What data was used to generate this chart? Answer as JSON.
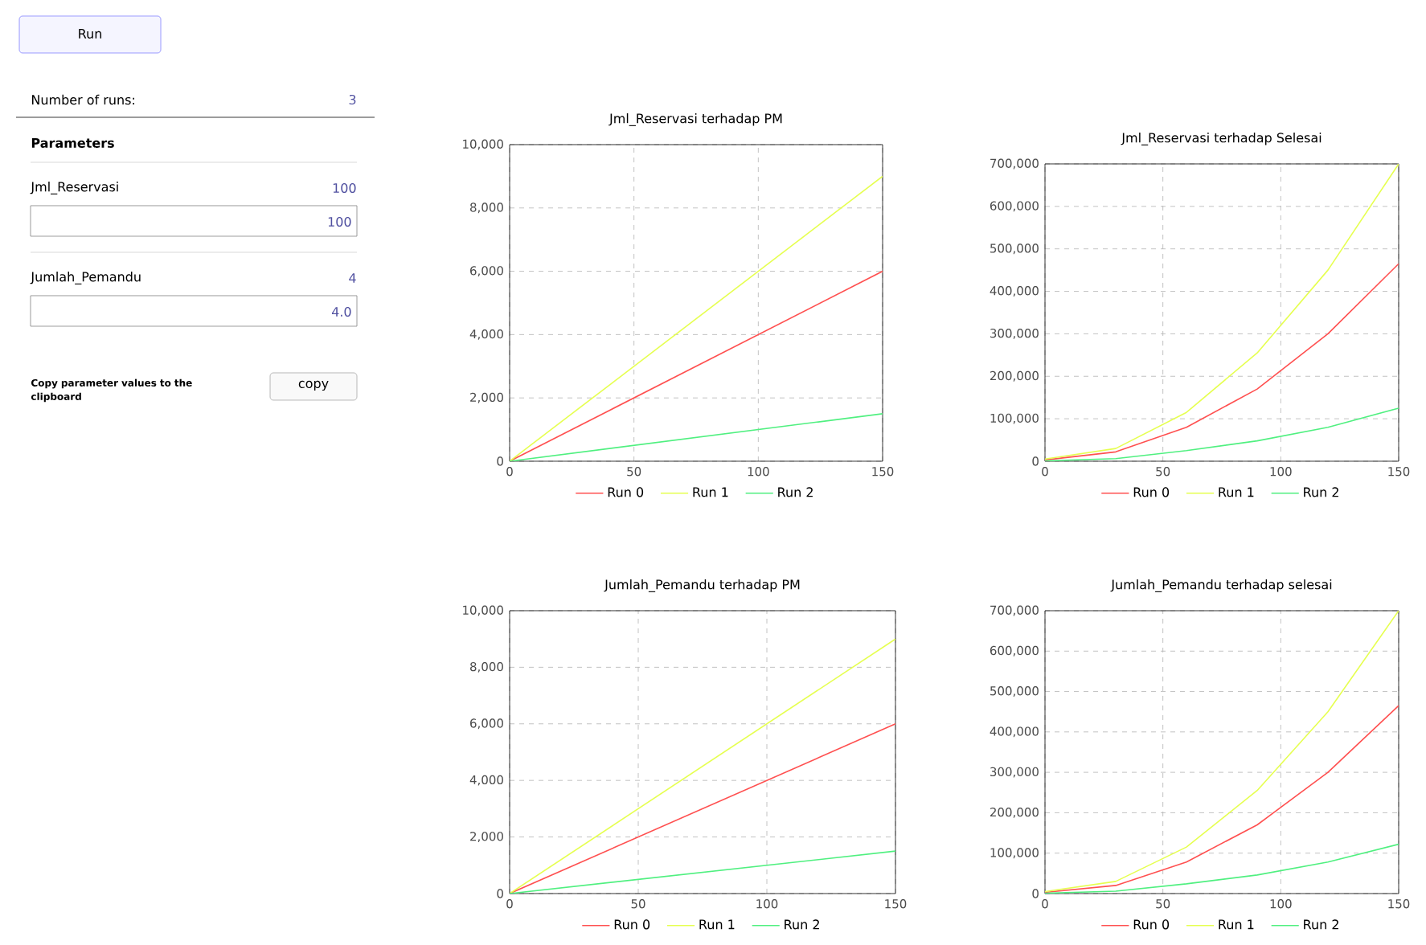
{
  "chart_data": [
    {
      "type": "other",
      "annotations": [
        "Run",
        "Number of runs:",
        "3",
        "Parameters",
        "Jml_Reservasi",
        "100",
        "100",
        "Jumlah_Pemandu",
        "4",
        "4.0",
        "Copy parameter values to the clipboard",
        "copy"
      ]
    },
    {
      "type": "line",
      "title": "Jml_Reservasi terhadap PM",
      "x": [
        0,
        150
      ],
      "xlim": [
        0,
        150
      ],
      "ylim": [
        0,
        10000
      ],
      "xticks": [
        0,
        50,
        100,
        150
      ],
      "yticks": [
        0,
        {
          "value": 2000,
          "label": "2,000"
        },
        {
          "value": 4000,
          "label": "4,000"
        },
        {
          "value": 6000,
          "label": "6,000"
        },
        {
          "value": 8000,
          "label": "8,000"
        },
        {
          "value": 10000,
          "label": "10,000"
        }
      ],
      "grid": true,
      "legend": "bottom",
      "series": [
        {
          "name": "Run 0",
          "color": "#ff5050",
          "values": [
            0,
            6000
          ]
        },
        {
          "name": "Run 1",
          "color": "#e6ff50",
          "values": [
            0,
            9000
          ]
        },
        {
          "name": "Run 2",
          "color": "#50f080",
          "values": [
            0,
            1500
          ]
        }
      ]
    },
    {
      "type": "line",
      "title": "Jml_Reservasi terhadap Selesai",
      "x": [
        0,
        30,
        60,
        90,
        120,
        150
      ],
      "xlim": [
        0,
        150
      ],
      "ylim": [
        0,
        700000
      ],
      "xticks": [
        0,
        50,
        100,
        150
      ],
      "yticks": [
        0,
        {
          "value": 100000,
          "label": "100,000"
        },
        {
          "value": 200000,
          "label": "200,000"
        },
        {
          "value": 300000,
          "label": "300,000"
        },
        {
          "value": 400000,
          "label": "400,000"
        },
        {
          "value": 500000,
          "label": "500,000"
        },
        {
          "value": 600000,
          "label": "600,000"
        },
        {
          "value": 700000,
          "label": "700,000"
        }
      ],
      "grid": true,
      "legend": "bottom",
      "series": [
        {
          "name": "Run 0",
          "color": "#ff5050",
          "values": [
            3000,
            22000,
            80000,
            170000,
            300000,
            465000
          ]
        },
        {
          "name": "Run 1",
          "color": "#e6ff50",
          "values": [
            5000,
            30000,
            115000,
            255000,
            450000,
            700000
          ]
        },
        {
          "name": "Run 2",
          "color": "#50f080",
          "values": [
            1000,
            6000,
            25000,
            48000,
            80000,
            125000
          ]
        }
      ]
    },
    {
      "type": "line",
      "title": "Jumlah_Pemandu terhadap PM",
      "x": [
        0,
        150
      ],
      "xlim": [
        0,
        150
      ],
      "ylim": [
        0,
        10000
      ],
      "xticks": [
        0,
        50,
        100,
        150
      ],
      "yticks": [
        0,
        {
          "value": 2000,
          "label": "2,000"
        },
        {
          "value": 4000,
          "label": "4,000"
        },
        {
          "value": 6000,
          "label": "6,000"
        },
        {
          "value": 8000,
          "label": "8,000"
        },
        {
          "value": 10000,
          "label": "10,000"
        }
      ],
      "grid": true,
      "legend": "bottom",
      "series": [
        {
          "name": "Run 0",
          "color": "#ff5050",
          "values": [
            0,
            6000
          ]
        },
        {
          "name": "Run 1",
          "color": "#e6ff50",
          "values": [
            0,
            9000
          ]
        },
        {
          "name": "Run 2",
          "color": "#50f080",
          "values": [
            0,
            1500
          ]
        }
      ]
    },
    {
      "type": "line",
      "title": "Jumlah_Pemandu terhadap selesai",
      "x": [
        0,
        30,
        60,
        90,
        120,
        150
      ],
      "xlim": [
        0,
        150
      ],
      "ylim": [
        0,
        700000
      ],
      "xticks": [
        0,
        50,
        100,
        150
      ],
      "yticks": [
        0,
        {
          "value": 100000,
          "label": "100,000"
        },
        {
          "value": 200000,
          "label": "200,000"
        },
        {
          "value": 300000,
          "label": "300,000"
        },
        {
          "value": 400000,
          "label": "400,000"
        },
        {
          "value": 500000,
          "label": "500,000"
        },
        {
          "value": 600000,
          "label": "600,000"
        },
        {
          "value": 700000,
          "label": "700,000"
        }
      ],
      "grid": true,
      "legend": "bottom",
      "series": [
        {
          "name": "Run 0",
          "color": "#ff5050",
          "values": [
            3000,
            20000,
            78000,
            170000,
            300000,
            465000
          ]
        },
        {
          "name": "Run 1",
          "color": "#e6ff50",
          "values": [
            5000,
            30000,
            115000,
            255000,
            450000,
            700000
          ]
        },
        {
          "name": "Run 2",
          "color": "#50f080",
          "values": [
            1000,
            6000,
            24000,
            46000,
            78000,
            122000
          ]
        }
      ]
    }
  ]
}
